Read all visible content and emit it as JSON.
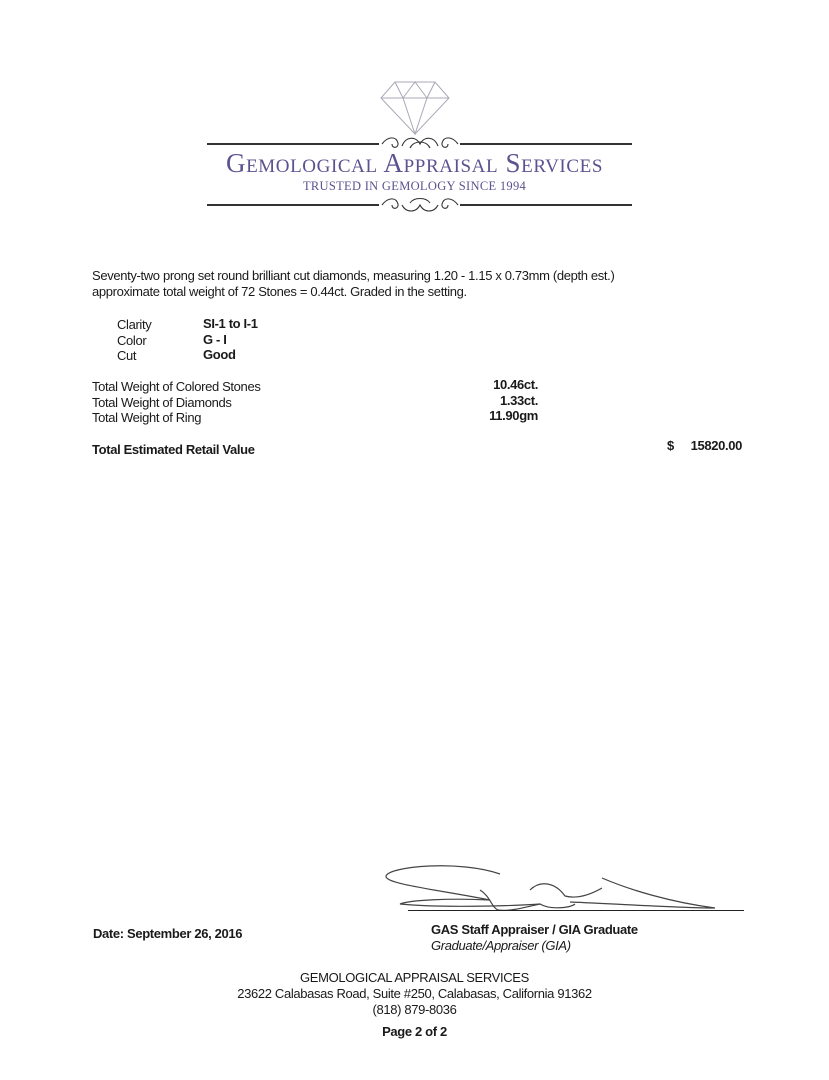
{
  "header": {
    "logo_icon": "diamond-icon",
    "company": "Gemological Appraisal Services",
    "tagline": "TRUSTED IN GEMOLOGY SINCE 1994",
    "brand_color": "#5b5290"
  },
  "description": {
    "line1": "Seventy-two prong set round brilliant cut diamonds, measuring 1.20 - 1.15 x 0.73mm (depth est.)",
    "line2": "approximate total weight of 72 Stones = 0.44ct. Graded in the setting."
  },
  "grades": [
    {
      "label": "Clarity",
      "value": "SI-1 to I-1"
    },
    {
      "label": "Color",
      "value": "G - I"
    },
    {
      "label": "Cut",
      "value": "Good"
    }
  ],
  "weights": [
    {
      "label": "Total Weight of Colored Stones",
      "value": "10.46ct."
    },
    {
      "label": "Total Weight of Diamonds",
      "value": "1.33ct."
    },
    {
      "label": "Total Weight of Ring",
      "value": "11.90gm"
    }
  ],
  "retail": {
    "label": "Total Estimated Retail Value",
    "currency": "$",
    "value": "15820.00"
  },
  "date": "Date: September 26, 2016",
  "signature": {
    "title": "GAS Staff Appraiser / GIA Graduate",
    "subtitle": "Graduate/Appraiser (GIA)"
  },
  "footer": {
    "company": "GEMOLOGICAL APPRAISAL SERVICES",
    "address": "23622 Calabasas Road, Suite #250, Calabasas, California 91362",
    "phone": "(818) 879-8036",
    "page": "Page 2 of 2"
  }
}
